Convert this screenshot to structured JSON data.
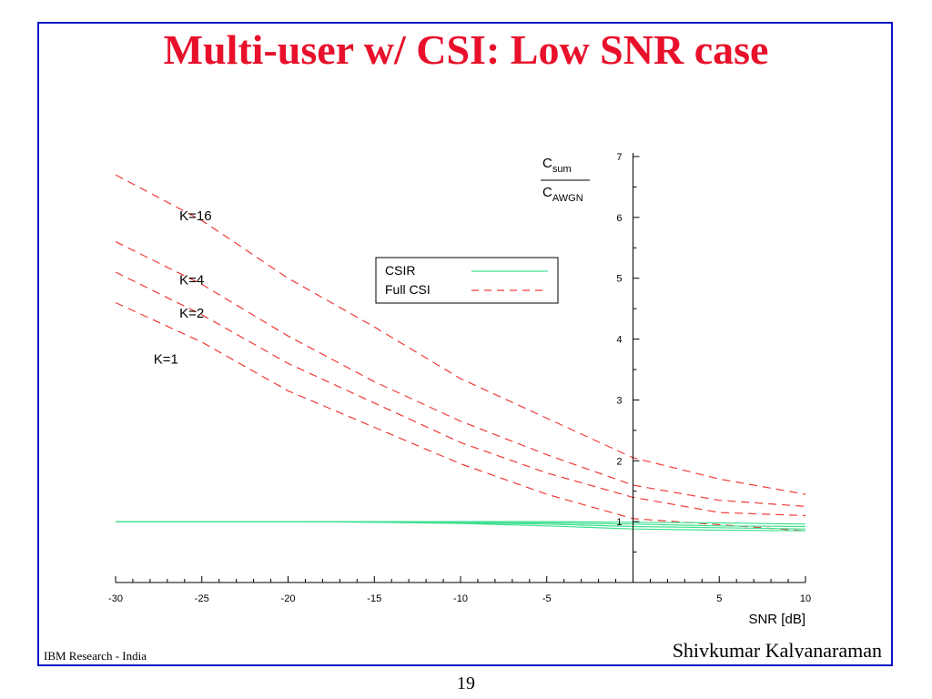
{
  "slide": {
    "title": "Multi-user w/ CSI: Low SNR case",
    "footer_left": "IBM Research - India",
    "footer_right": "Shivkumar Kalyanaraman",
    "page_number": "19"
  },
  "colors": {
    "frame": "#1010c8",
    "title": "#e8102a",
    "csir": "#40e090",
    "full_csi": "#f03a3a"
  },
  "chart_data": {
    "type": "line",
    "title": "",
    "xlabel": "SNR [dB]",
    "ylabel_num": "C",
    "ylabel_num_sub": "sum",
    "ylabel_den": "C",
    "ylabel_den_sub": "AWGN",
    "xlim": [
      -30,
      10
    ],
    "ylim": [
      0,
      7
    ],
    "x_ticks": [
      -30,
      -25,
      -20,
      -15,
      -10,
      -5,
      5,
      10
    ],
    "y_ticks": [
      1,
      2,
      3,
      4,
      5,
      6,
      7
    ],
    "grid": false,
    "legend": {
      "placement": "center",
      "entries": [
        {
          "label": "CSIR",
          "style": "solid",
          "color": "#40e090"
        },
        {
          "label": "Full CSI",
          "style": "dashed",
          "color": "#f03a3a"
        }
      ]
    },
    "x": [
      -30,
      -25,
      -20,
      -15,
      -10,
      -5,
      0,
      5,
      10
    ],
    "series": [
      {
        "name": "K=16",
        "group": "Full CSI",
        "values": [
          6.7,
          5.95,
          5.0,
          4.2,
          3.35,
          2.7,
          2.05,
          1.7,
          1.45
        ]
      },
      {
        "name": "K=4",
        "group": "Full CSI",
        "values": [
          5.6,
          4.9,
          4.05,
          3.3,
          2.65,
          2.1,
          1.6,
          1.35,
          1.25
        ]
      },
      {
        "name": "K=2",
        "group": "Full CSI",
        "values": [
          5.1,
          4.4,
          3.6,
          2.95,
          2.3,
          1.8,
          1.4,
          1.15,
          1.1
        ]
      },
      {
        "name": "K=1",
        "group": "Full CSI",
        "values": [
          4.6,
          3.95,
          3.15,
          2.55,
          1.95,
          1.45,
          1.05,
          0.95,
          0.85
        ]
      },
      {
        "name": "",
        "group": "CSIR",
        "values": [
          1.0,
          1.0,
          1.0,
          1.0,
          1.0,
          1.0,
          0.99,
          0.98,
          0.96
        ]
      },
      {
        "name": "",
        "group": "CSIR",
        "values": [
          1.0,
          1.0,
          1.0,
          1.0,
          0.99,
          0.98,
          0.96,
          0.93,
          0.92
        ]
      },
      {
        "name": "",
        "group": "CSIR",
        "values": [
          1.0,
          1.0,
          1.0,
          0.99,
          0.98,
          0.96,
          0.92,
          0.9,
          0.88
        ]
      },
      {
        "name": "",
        "group": "CSIR",
        "values": [
          1.0,
          1.0,
          1.0,
          0.99,
          0.97,
          0.93,
          0.88,
          0.86,
          0.85
        ]
      }
    ],
    "annotations": [
      {
        "text": "K=16",
        "x": -26.3,
        "y": 5.95
      },
      {
        "text": "K=4",
        "x": -26.3,
        "y": 4.9
      },
      {
        "text": "K=2",
        "x": -26.3,
        "y": 4.35
      },
      {
        "text": "K=1",
        "x": -27.8,
        "y": 3.6
      }
    ]
  }
}
